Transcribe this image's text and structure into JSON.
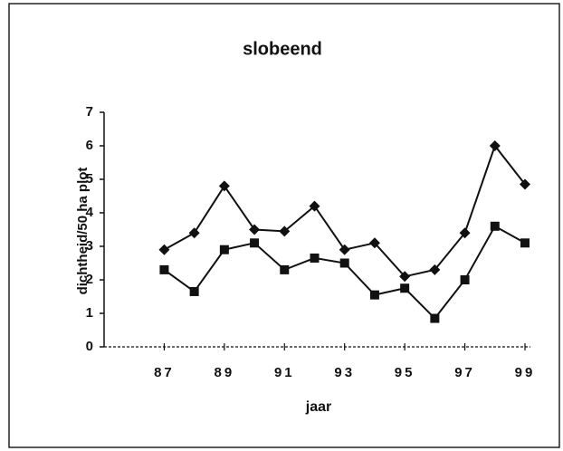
{
  "chart_data": {
    "type": "line",
    "title": "slobeend",
    "xlabel": "jaar",
    "ylabel": "dichtheid/50 ha plot",
    "x": [
      87,
      88,
      89,
      90,
      91,
      92,
      93,
      94,
      95,
      96,
      97,
      98,
      99
    ],
    "series": [
      {
        "color": "#111111",
        "marker": "diamond",
        "values": [
          2.9,
          3.4,
          4.8,
          3.5,
          3.45,
          4.2,
          2.9,
          3.1,
          2.1,
          2.3,
          3.4,
          6.0,
          4.85
        ]
      },
      {
        "color": "#111111",
        "marker": "square",
        "values": [
          2.3,
          1.65,
          2.9,
          3.1,
          2.3,
          2.65,
          2.5,
          1.55,
          1.75,
          0.85,
          2.0,
          3.6,
          3.1
        ]
      }
    ],
    "xlim": [
      85,
      99
    ],
    "xticks": [
      87,
      89,
      91,
      93,
      95,
      97,
      99
    ],
    "ylim": [
      0,
      7
    ],
    "yticks": [
      0,
      1,
      2,
      3,
      4,
      5,
      6,
      7
    ],
    "grid": false
  }
}
